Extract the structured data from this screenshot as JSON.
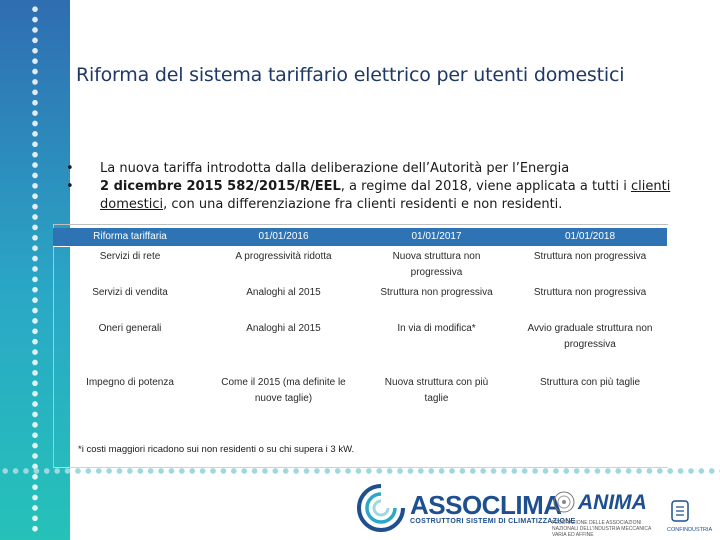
{
  "title": "Riforma del sistema tariffario elettrico per utenti domestici",
  "bullets": {
    "line1": "La nuova tariffa introdotta dalla deliberazione dell’Autorità per l’Energia",
    "line2_bold": "2 dicembre 2015 582/2015/R/EEL",
    "line2_rest": ", a regime dal 2018, viene applicata a tutti i ",
    "clienti": "clienti",
    "domestici": "domestici",
    "line3_rest": ", con una differenziazione fra clienti residenti e non residenti."
  },
  "table": {
    "header": [
      "Riforma tariffaria",
      "01/01/2016",
      "01/01/2017",
      "01/01/2018"
    ],
    "rows": [
      [
        "Servizi di rete",
        "A progressività ridotta",
        "Nuova struttura non progressiva",
        "Struttura non progressiva"
      ],
      [
        "Servizi di vendita",
        "Analoghi al 2015",
        "Struttura non progressiva",
        "Struttura non progressiva"
      ],
      [
        "Oneri generali",
        "Analoghi al 2015",
        "In via di modifica*",
        "Avvio graduale struttura non progressiva"
      ],
      [
        "Impegno di potenza",
        "Come il 2015 (ma definite le nuove taglie)",
        "Nuova struttura con più taglie",
        "Struttura con più taglie"
      ]
    ],
    "footnote": "*i costi maggiori ricadono sui non residenti o su chi supera i 3 kW."
  },
  "logos": {
    "assoclima": "ASSOCLIMA",
    "assoclima_sub": "COSTRUTTORI SISTEMI DI CLIMATIZZAZIONE",
    "anima": "ANIMA",
    "anima_sub": "FEDERAZIONE DELLE ASSOCIAZIONI NAZIONALI DELL'INDUSTRIA MECCANICA VARIA ED AFFINE",
    "confindustria": "CONFINDUSTRIA"
  },
  "colors": {
    "accent_blue": "#2e74b5",
    "title_navy": "#1f3864",
    "sidebar_top": "#2f6db1",
    "sidebar_bottom": "#25c2b8"
  }
}
